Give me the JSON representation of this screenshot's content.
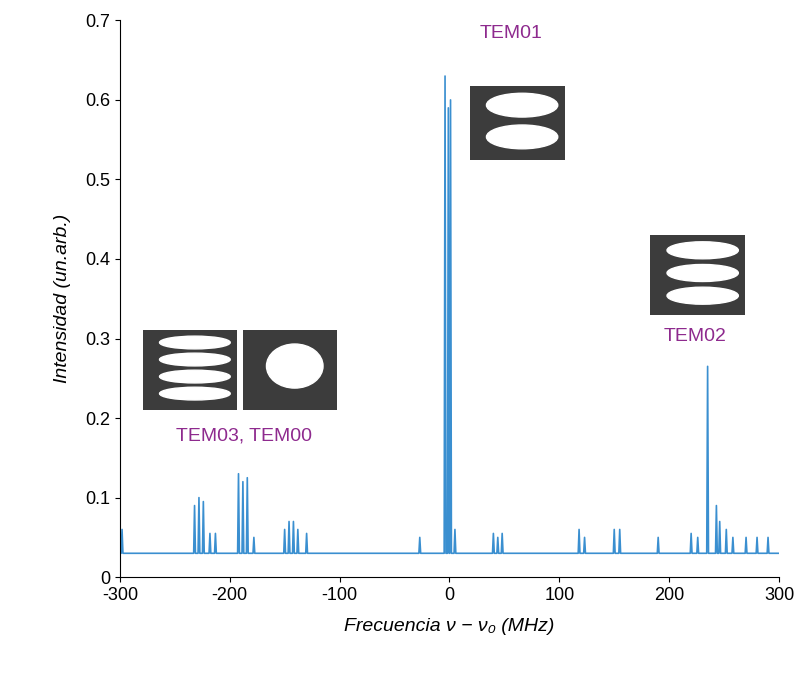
{
  "chart_data": {
    "type": "line",
    "x_label": "Frecuencia ν − ν₀ (MHz)",
    "y_label": "Intensidad (un.arb.)",
    "annotations": [
      "TEM01",
      "TEM02",
      "TEM03, TEM00"
    ],
    "color": "#3a8fd0",
    "xlim": [
      -300,
      300
    ],
    "xticks": [
      -300,
      -200,
      -100,
      0,
      100,
      200,
      300
    ],
    "ylim": [
      0,
      0.7
    ],
    "yticks": [
      {
        "value": 0,
        "label": "0"
      },
      0.1,
      0.2,
      0.3,
      0.4,
      0.5,
      0.6,
      0.7
    ],
    "grid": false,
    "x": [
      -300,
      -298.8,
      -298,
      -297.2,
      -260,
      -232.8,
      -232,
      -231.2,
      -228.8,
      -228,
      -227.2,
      -224.8,
      -224,
      -223.2,
      -218.8,
      -218,
      -217.2,
      -213.8,
      -213,
      -212.2,
      -192.8,
      -192,
      -191.2,
      -188.8,
      -188,
      -187.2,
      -184.8,
      -184,
      -183.2,
      -178.8,
      -178,
      -177.2,
      -150.8,
      -150,
      -149.2,
      -146.8,
      -146,
      -145.2,
      -142.8,
      -142,
      -141.2,
      -138.8,
      -138,
      -137.2,
      -130.8,
      -130,
      -129.2,
      -80,
      -27.8,
      -27,
      -26.2,
      -4.8,
      -4,
      -3.2,
      -1.8,
      -1,
      -0.2,
      0.2,
      1,
      1.8,
      4.2,
      5,
      5.8,
      39.2,
      40,
      40.8,
      43.2,
      44,
      44.8,
      47.2,
      48,
      48.8,
      80,
      117.2,
      118,
      118.8,
      122.2,
      123,
      123.8,
      149.2,
      150,
      150.8,
      154.2,
      155,
      155.8,
      189.2,
      190,
      190.8,
      219.2,
      220,
      220.8,
      225.2,
      226,
      226.8,
      234.2,
      235,
      235.8,
      242.2,
      243,
      243.8,
      245.2,
      246,
      246.8,
      251.2,
      252,
      252.8,
      257.2,
      258,
      258.8,
      269.2,
      270,
      270.8,
      279.2,
      280,
      280.8,
      289.2,
      290,
      290.8,
      300
    ],
    "values": [
      0.03,
      0.03,
      0.06,
      0.03,
      0.03,
      0.03,
      0.09,
      0.03,
      0.03,
      0.1,
      0.03,
      0.03,
      0.095,
      0.03,
      0.03,
      0.055,
      0.03,
      0.03,
      0.055,
      0.03,
      0.03,
      0.13,
      0.03,
      0.03,
      0.12,
      0.03,
      0.03,
      0.125,
      0.03,
      0.03,
      0.05,
      0.03,
      0.03,
      0.06,
      0.03,
      0.03,
      0.07,
      0.03,
      0.03,
      0.07,
      0.03,
      0.03,
      0.06,
      0.03,
      0.03,
      0.055,
      0.03,
      0.03,
      0.03,
      0.05,
      0.03,
      0.03,
      0.63,
      0.03,
      0.03,
      0.59,
      0.03,
      0.03,
      0.6,
      0.03,
      0.03,
      0.06,
      0.03,
      0.03,
      0.055,
      0.03,
      0.03,
      0.05,
      0.03,
      0.03,
      0.055,
      0.03,
      0.03,
      0.03,
      0.06,
      0.03,
      0.03,
      0.05,
      0.03,
      0.03,
      0.06,
      0.03,
      0.03,
      0.06,
      0.03,
      0.03,
      0.05,
      0.03,
      0.03,
      0.055,
      0.03,
      0.03,
      0.05,
      0.03,
      0.03,
      0.265,
      0.03,
      0.03,
      0.09,
      0.03,
      0.03,
      0.07,
      0.03,
      0.03,
      0.06,
      0.03,
      0.03,
      0.05,
      0.03,
      0.03,
      0.05,
      0.03,
      0.03,
      0.05,
      0.03,
      0.03,
      0.05,
      0.03,
      0.03
    ]
  }
}
